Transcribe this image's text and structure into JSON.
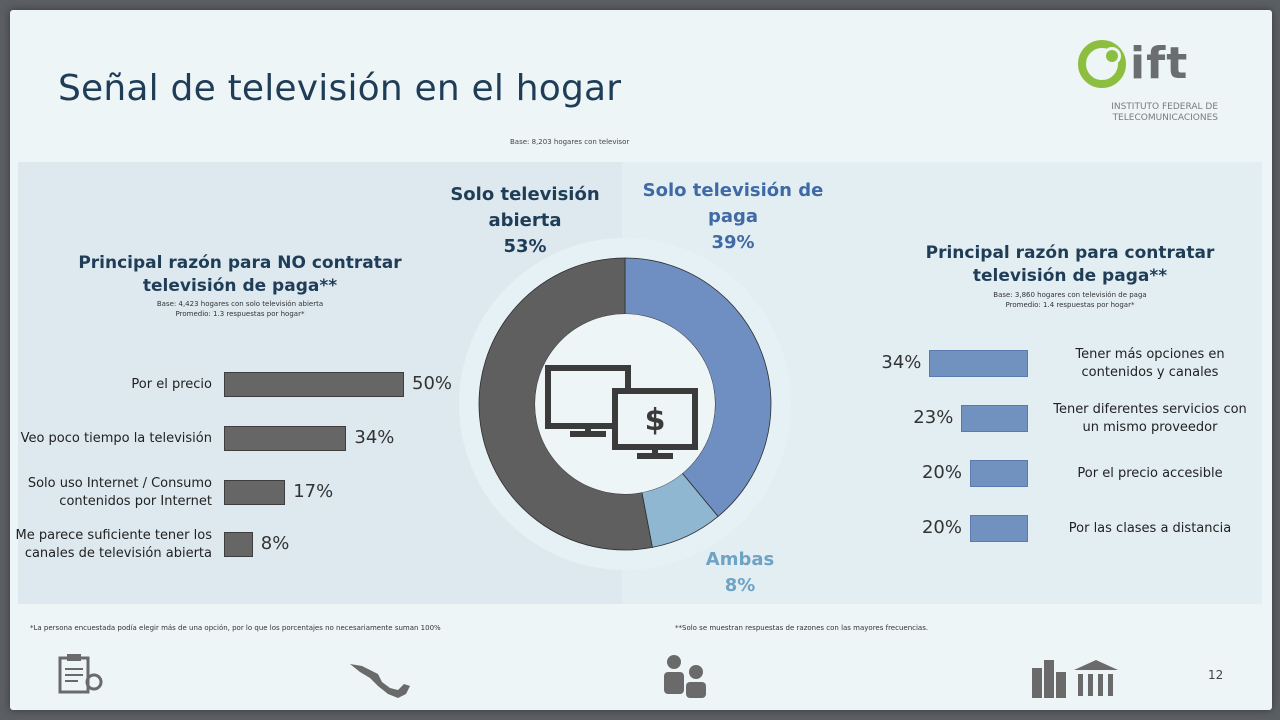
{
  "title": "Señal de televisión en el hogar",
  "logo": {
    "name": "ift",
    "subtitle_line1": "INSTITUTO FEDERAL DE",
    "subtitle_line2": "TELECOMUNICACIONES"
  },
  "base_note": "Base: 8,203 hogares con televisor",
  "left_section": {
    "heading_line1": "Principal razón para NO contratar",
    "heading_line2": "televisión de paga**",
    "base_line1": "Base: 4,423 hogares con solo televisión abierta",
    "base_line2": "Promedio: 1.3 respuestas por hogar*"
  },
  "right_section": {
    "heading_line1": "Principal razón para contratar",
    "heading_line2": "televisión de paga**",
    "base_line1": "Base: 3,860 hogares con televisión de paga",
    "base_line2": "Promedio: 1.4 respuestas por hogar*"
  },
  "donut_labels": {
    "abierta_line1": "Solo televisión",
    "abierta_line2": "abierta",
    "abierta_pct": "53%",
    "paga_line1": "Solo televisión de",
    "paga_line2": "paga",
    "paga_pct": "39%",
    "ambas_line1": "Ambas",
    "ambas_pct": "8%"
  },
  "chart_data": [
    {
      "type": "pie",
      "categories": [
        "Solo televisión abierta",
        "Solo televisión de paga",
        "Ambas"
      ],
      "values": [
        53,
        39,
        8
      ],
      "colors": [
        "#5f5f5f",
        "#6f8fc2",
        "#8fb7d1"
      ]
    },
    {
      "type": "bar",
      "orientation": "horizontal",
      "title": "Principal razón para NO contratar televisión de paga**",
      "categories": [
        "Por el precio",
        "Veo poco tiempo la televisión",
        "Solo uso Internet / Consumo contenidos por Internet",
        "Me parece suficiente tener los canales de televisión abierta"
      ],
      "category_lines": [
        [
          "Por el precio"
        ],
        [
          "Veo poco tiempo la televisión"
        ],
        [
          "Solo uso Internet / Consumo",
          "contenidos por Internet"
        ],
        [
          "Me parece suficiente tener los",
          "canales de televisión abierta"
        ]
      ],
      "values": [
        50,
        34,
        17,
        8
      ],
      "labels": [
        "50%",
        "34%",
        "17%",
        "8%"
      ],
      "color": "#666666"
    },
    {
      "type": "bar",
      "orientation": "horizontal",
      "direction": "right-aligned",
      "title": "Principal razón para contratar televisión de paga**",
      "categories": [
        "Tener más opciones en contenidos y canales",
        "Tener diferentes servicios con un mismo proveedor",
        "Por el precio accesible",
        "Por las clases a distancia"
      ],
      "category_lines": [
        [
          "Tener más opciones en",
          "contenidos y canales"
        ],
        [
          "Tener diferentes servicios con",
          "un mismo proveedor"
        ],
        [
          "Por el precio accesible"
        ],
        [
          "Por las clases a distancia"
        ]
      ],
      "values": [
        34,
        23,
        20,
        20
      ],
      "labels": [
        "34%",
        "23%",
        "20%",
        "20%"
      ],
      "color": "#7191bf"
    }
  ],
  "footnotes": {
    "left": "*La persona encuestada podía elegir más de una opción, por lo que los porcentajes no necesariamente suman 100%",
    "right": "**Solo se muestran respuestas de razones con las mayores frecuencias."
  },
  "icons": [
    "clipboard-gear-icon",
    "mexico-map-icon",
    "people-icon",
    "buildings-icon",
    "tv-dollar-icon"
  ],
  "page_number": "12",
  "colors": {
    "title": "#1f3d57",
    "abierta": "#5f5f5f",
    "paga": "#6f8fc2",
    "ambas": "#8fb7d1"
  }
}
